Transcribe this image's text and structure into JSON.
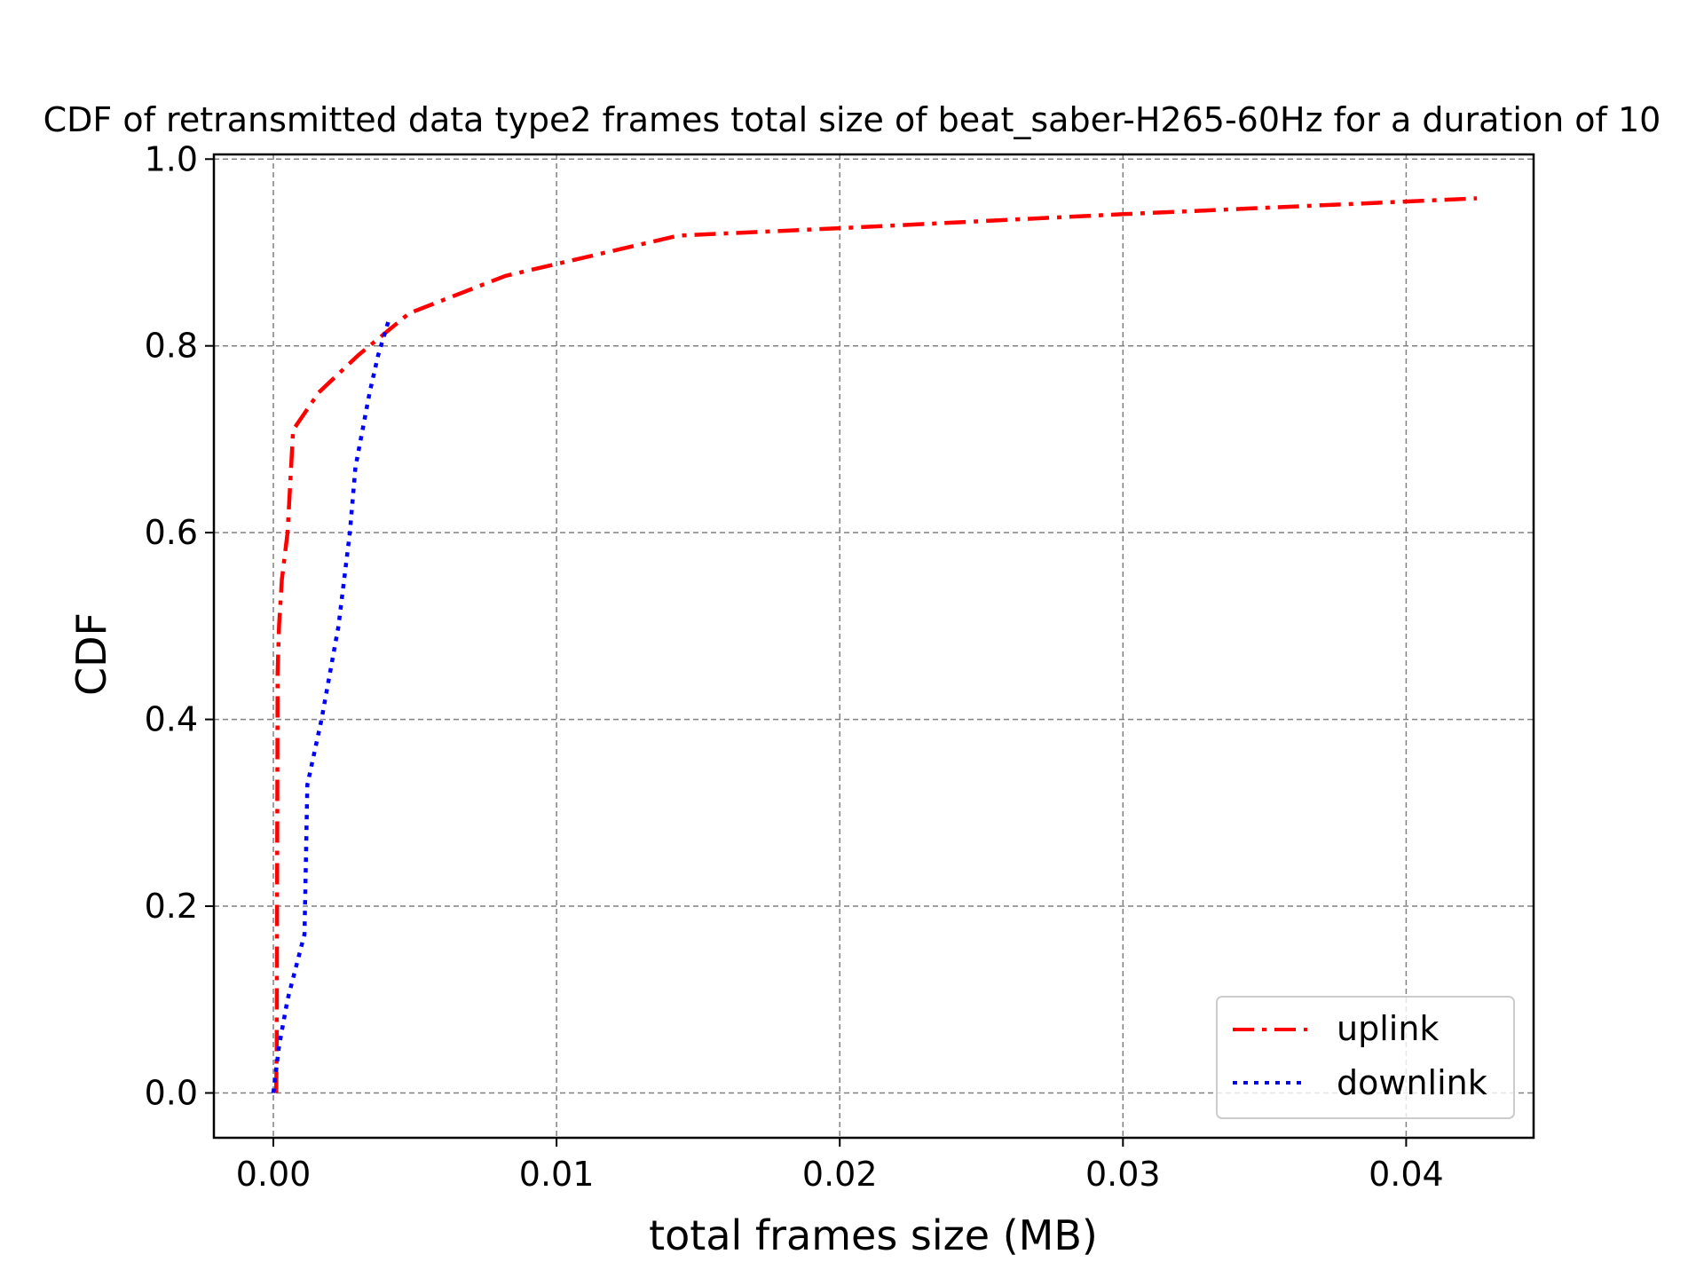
{
  "chart_data": {
    "type": "line",
    "title": "CDF of retransmitted data type2 frames total size of beat_saber-H265-60Hz for a duration of 10",
    "xlabel": "total frames size (MB)",
    "ylabel": "CDF",
    "xlim": [
      -0.0021,
      0.0445
    ],
    "ylim": [
      -0.048,
      1.005
    ],
    "x_ticks": [
      "0.00",
      "0.01",
      "0.02",
      "0.03",
      "0.04"
    ],
    "x_tick_values": [
      0,
      0.01,
      0.02,
      0.03,
      0.04
    ],
    "y_ticks": [
      "0.0",
      "0.2",
      "0.4",
      "0.6",
      "0.8",
      "1.0"
    ],
    "y_tick_values": [
      0,
      0.2,
      0.4,
      0.6,
      0.8,
      1.0
    ],
    "grid": true,
    "legend_position": "lower right",
    "series": [
      {
        "name": "uplink",
        "color": "#ff0000",
        "style": "dashdot",
        "x": [
          0.0001,
          0.00012,
          0.00015,
          0.0002,
          0.0003,
          0.0005,
          0.0007,
          0.0016,
          0.003,
          0.0048,
          0.0082,
          0.0143,
          0.02,
          0.03,
          0.0425
        ],
        "y": [
          0.0,
          0.05,
          0.45,
          0.5,
          0.55,
          0.6,
          0.71,
          0.75,
          0.79,
          0.835,
          0.875,
          0.918,
          0.926,
          0.941,
          0.958
        ]
      },
      {
        "name": "downlink",
        "color": "#0000ff",
        "style": "dotted",
        "x": [
          0.0,
          0.0002,
          0.0005,
          0.0011,
          0.0012,
          0.0017,
          0.0023,
          0.0027,
          0.0029,
          0.0034,
          0.0037,
          0.0041
        ],
        "y": [
          0.0,
          0.05,
          0.1,
          0.17,
          0.33,
          0.4,
          0.5,
          0.6,
          0.67,
          0.75,
          0.79,
          0.83
        ]
      }
    ]
  }
}
